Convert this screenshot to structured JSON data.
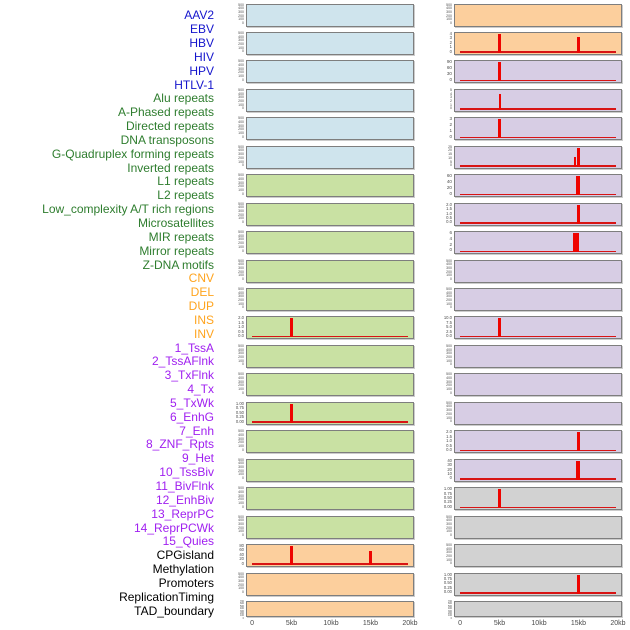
{
  "colors": {
    "label": {
      "virus": "#1414cc",
      "repeat": "#2e7d2e",
      "structural_variant": "#ffa41e",
      "chromatin_state": "#a020f0",
      "other": "#000000"
    },
    "fill": {
      "blue": "#cfe4ed",
      "green": "#c9e1a3",
      "orange": "#fccf9d",
      "purple": "#d7cde4",
      "gray": "#d2d2d2"
    },
    "spike_red": "#ee0400"
  },
  "chart_data": {
    "type": "area",
    "title": "",
    "xlabel": "",
    "ylabel": "",
    "x_range_kb": [
      0,
      20
    ],
    "x_ticks": [
      "0",
      "5kb",
      "10kb",
      "15kb",
      "20kb"
    ],
    "columns": 2,
    "legend_position": "none",
    "grid": false,
    "row_labels": [
      {
        "text": "AAV2",
        "group": "virus"
      },
      {
        "text": "EBV",
        "group": "virus"
      },
      {
        "text": "HBV",
        "group": "virus"
      },
      {
        "text": "HIV",
        "group": "virus"
      },
      {
        "text": "HPV",
        "group": "virus"
      },
      {
        "text": "HTLV-1",
        "group": "virus"
      },
      {
        "text": "Alu repeats",
        "group": "repeat"
      },
      {
        "text": "A-Phased repeats",
        "group": "repeat"
      },
      {
        "text": "Directed repeats",
        "group": "repeat"
      },
      {
        "text": "DNA transposons",
        "group": "repeat"
      },
      {
        "text": "G-Quadruplex forming repeats",
        "group": "repeat"
      },
      {
        "text": "Inverted repeats",
        "group": "repeat"
      },
      {
        "text": "L1 repeats",
        "group": "repeat"
      },
      {
        "text": "L2 repeats",
        "group": "repeat"
      },
      {
        "text": "Low_complexity A/T rich regions",
        "group": "repeat"
      },
      {
        "text": "Microsatellites",
        "group": "repeat"
      },
      {
        "text": "MIR repeats",
        "group": "repeat"
      },
      {
        "text": "Mirror repeats",
        "group": "repeat"
      },
      {
        "text": "Z-DNA motifs",
        "group": "repeat"
      },
      {
        "text": "CNV",
        "group": "structural_variant"
      },
      {
        "text": "DEL",
        "group": "structural_variant"
      },
      {
        "text": "DUP",
        "group": "structural_variant"
      },
      {
        "text": "INS",
        "group": "structural_variant"
      },
      {
        "text": "INV",
        "group": "structural_variant"
      },
      {
        "text": "1_TssA",
        "group": "chromatin_state"
      },
      {
        "text": "2_TssAFlnk",
        "group": "chromatin_state"
      },
      {
        "text": "3_TxFlnk",
        "group": "chromatin_state"
      },
      {
        "text": "4_Tx",
        "group": "chromatin_state"
      },
      {
        "text": "5_TxWk",
        "group": "chromatin_state"
      },
      {
        "text": "6_EnhG",
        "group": "chromatin_state"
      },
      {
        "text": "7_Enh",
        "group": "chromatin_state"
      },
      {
        "text": "8_ZNF_Rpts",
        "group": "chromatin_state"
      },
      {
        "text": "9_Het",
        "group": "chromatin_state"
      },
      {
        "text": "10_TssBiv",
        "group": "chromatin_state"
      },
      {
        "text": "11_BivFlnk",
        "group": "chromatin_state"
      },
      {
        "text": "12_EnhBiv",
        "group": "chromatin_state"
      },
      {
        "text": "13_ReprPC",
        "group": "chromatin_state"
      },
      {
        "text": "14_ReprPCWk",
        "group": "chromatin_state"
      },
      {
        "text": "15_Quies",
        "group": "chromatin_state"
      },
      {
        "text": "CPGisland",
        "group": "other"
      },
      {
        "text": "Methylation",
        "group": "other"
      },
      {
        "text": "Promoters",
        "group": "other"
      },
      {
        "text": "ReplicationTiming",
        "group": "other"
      },
      {
        "text": "TAD_boundary",
        "group": "other"
      }
    ],
    "bands": [
      {
        "left": {
          "fill": "blue",
          "ticks": [
            "500",
            "400",
            "300",
            "200",
            "100",
            "0"
          ],
          "spikes": [],
          "baseline": false
        },
        "right": {
          "fill": "orange",
          "ticks": [
            "500",
            "400",
            "300",
            "200",
            "100",
            "0"
          ],
          "spikes": [],
          "baseline": false
        }
      },
      {
        "left": {
          "fill": "blue",
          "ticks": [
            "500",
            "400",
            "300",
            "200",
            "100",
            "0"
          ],
          "spikes": [],
          "baseline": false
        },
        "right": {
          "fill": "orange",
          "ticks": [
            "4",
            "3",
            "2",
            "1",
            "0"
          ],
          "spikes": [
            {
              "kb": 5,
              "h": 1,
              "w": 3
            },
            {
              "kb": 15,
              "h": 0.85,
              "w": 3
            }
          ],
          "baseline": true
        }
      },
      {
        "left": {
          "fill": "blue",
          "ticks": [
            "500",
            "400",
            "300",
            "200",
            "100",
            "0"
          ],
          "spikes": [],
          "baseline": false
        },
        "right": {
          "fill": "purple",
          "ticks": [
            "90",
            "60",
            "30",
            "0"
          ],
          "spikes": [
            {
              "kb": 5,
              "h": 1,
              "w": 3
            }
          ],
          "baseline": true
        }
      },
      {
        "left": {
          "fill": "blue",
          "ticks": [
            "500",
            "400",
            "300",
            "200",
            "100",
            "0"
          ],
          "spikes": [],
          "baseline": false
        },
        "right": {
          "fill": "purple",
          "ticks": [
            "5",
            "4",
            "3",
            "2",
            "1",
            "0"
          ],
          "spikes": [
            {
              "kb": 5,
              "h": 0.85,
              "w": 2
            }
          ],
          "baseline": true
        }
      },
      {
        "left": {
          "fill": "blue",
          "ticks": [
            "500",
            "400",
            "300",
            "200",
            "100",
            "0"
          ],
          "spikes": [],
          "baseline": false
        },
        "right": {
          "fill": "purple",
          "ticks": [
            "3",
            "2",
            "1",
            "0"
          ],
          "spikes": [
            {
              "kb": 5,
              "h": 1,
              "w": 3
            }
          ],
          "baseline": true
        }
      },
      {
        "left": {
          "fill": "blue",
          "ticks": [
            "500",
            "400",
            "300",
            "200",
            "100",
            "0"
          ],
          "spikes": [],
          "baseline": false
        },
        "right": {
          "fill": "purple",
          "ticks": [
            "25",
            "20",
            "15",
            "10",
            "5",
            "0"
          ],
          "spikes": [
            {
              "kb": 14.6,
              "h": 0.5,
              "w": 2
            },
            {
              "kb": 15,
              "h": 1,
              "w": 3
            }
          ],
          "baseline": true
        }
      },
      {
        "left": {
          "fill": "green",
          "ticks": [
            "500",
            "400",
            "300",
            "200",
            "100",
            "0"
          ],
          "spikes": [],
          "baseline": false
        },
        "right": {
          "fill": "purple",
          "ticks": [
            "60",
            "40",
            "20",
            "0"
          ],
          "spikes": [
            {
              "kb": 15,
              "h": 1,
              "w": 4
            }
          ],
          "baseline": true
        }
      },
      {
        "left": {
          "fill": "green",
          "ticks": [
            "500",
            "400",
            "300",
            "200",
            "100",
            "0"
          ],
          "spikes": [],
          "baseline": false
        },
        "right": {
          "fill": "purple",
          "ticks": [
            "2.0",
            "1.5",
            "1.0",
            "0.5",
            "0.0"
          ],
          "spikes": [
            {
              "kb": 15,
              "h": 1,
              "w": 3
            }
          ],
          "baseline": true
        }
      },
      {
        "left": {
          "fill": "green",
          "ticks": [
            "500",
            "400",
            "300",
            "200",
            "100",
            "0"
          ],
          "spikes": [],
          "baseline": false
        },
        "right": {
          "fill": "purple",
          "ticks": [
            "6",
            "4",
            "2",
            "0"
          ],
          "spikes": [
            {
              "kb": 14.8,
              "h": 1,
              "w": 6
            }
          ],
          "baseline": true
        }
      },
      {
        "left": {
          "fill": "green",
          "ticks": [
            "500",
            "400",
            "300",
            "200",
            "100",
            "0"
          ],
          "spikes": [],
          "baseline": false
        },
        "right": {
          "fill": "purple",
          "ticks": [
            "500",
            "400",
            "300",
            "200",
            "100",
            "0"
          ],
          "spikes": [],
          "baseline": false
        }
      },
      {
        "left": {
          "fill": "green",
          "ticks": [
            "500",
            "400",
            "300",
            "200",
            "100",
            "0"
          ],
          "spikes": [],
          "baseline": false
        },
        "right": {
          "fill": "purple",
          "ticks": [
            "500",
            "400",
            "300",
            "200",
            "100",
            "0"
          ],
          "spikes": [],
          "baseline": false
        }
      },
      {
        "left": {
          "fill": "green",
          "ticks": [
            "2.0",
            "1.5",
            "1.0",
            "0.5",
            "0.0"
          ],
          "spikes": [
            {
              "kb": 5,
              "h": 1,
              "w": 3
            }
          ],
          "baseline": true
        },
        "right": {
          "fill": "purple",
          "ticks": [
            "10.0",
            "7.5",
            "5.0",
            "2.5",
            "0.0"
          ],
          "spikes": [
            {
              "kb": 5,
              "h": 1,
              "w": 3
            }
          ],
          "baseline": true
        }
      },
      {
        "left": {
          "fill": "green",
          "ticks": [
            "500",
            "400",
            "300",
            "200",
            "100",
            "0"
          ],
          "spikes": [],
          "baseline": false
        },
        "right": {
          "fill": "purple",
          "ticks": [
            "500",
            "400",
            "300",
            "200",
            "100",
            "0"
          ],
          "spikes": [],
          "baseline": false
        }
      },
      {
        "left": {
          "fill": "green",
          "ticks": [
            "500",
            "400",
            "300",
            "200",
            "100",
            "0"
          ],
          "spikes": [],
          "baseline": false
        },
        "right": {
          "fill": "purple",
          "ticks": [
            "500",
            "400",
            "300",
            "200",
            "100",
            "0"
          ],
          "spikes": [],
          "baseline": false
        }
      },
      {
        "left": {
          "fill": "green",
          "ticks": [
            "1.00",
            "0.75",
            "0.50",
            "0.25",
            "0.00"
          ],
          "spikes": [
            {
              "kb": 5,
              "h": 1,
              "w": 3
            }
          ],
          "baseline": true
        },
        "right": {
          "fill": "purple",
          "ticks": [
            "500",
            "400",
            "300",
            "200",
            "100",
            "0"
          ],
          "spikes": [],
          "baseline": false
        }
      },
      {
        "left": {
          "fill": "green",
          "ticks": [
            "500",
            "400",
            "300",
            "200",
            "100",
            "0"
          ],
          "spikes": [],
          "baseline": false
        },
        "right": {
          "fill": "purple",
          "ticks": [
            "2.0",
            "1.5",
            "1.0",
            "0.5",
            "0.0"
          ],
          "spikes": [
            {
              "kb": 15,
              "h": 1,
              "w": 3
            }
          ],
          "baseline": true
        }
      },
      {
        "left": {
          "fill": "green",
          "ticks": [
            "500",
            "400",
            "300",
            "200",
            "100",
            "0"
          ],
          "spikes": [],
          "baseline": false
        },
        "right": {
          "fill": "purple",
          "ticks": [
            "40",
            "30",
            "20",
            "10",
            "0"
          ],
          "spikes": [
            {
              "kb": 15,
              "h": 1,
              "w": 4
            }
          ],
          "baseline": true
        }
      },
      {
        "left": {
          "fill": "green",
          "ticks": [
            "500",
            "400",
            "300",
            "200",
            "100",
            "0"
          ],
          "spikes": [],
          "baseline": false
        },
        "right": {
          "fill": "gray",
          "ticks": [
            "1.00",
            "0.75",
            "0.50",
            "0.25",
            "0.00"
          ],
          "spikes": [
            {
              "kb": 5,
              "h": 1,
              "w": 3
            }
          ],
          "baseline": true
        }
      },
      {
        "left": {
          "fill": "green",
          "ticks": [
            "500",
            "400",
            "300",
            "200",
            "100",
            "0"
          ],
          "spikes": [],
          "baseline": false
        },
        "right": {
          "fill": "gray",
          "ticks": [
            "500",
            "400",
            "300",
            "200",
            "100",
            "0"
          ],
          "spikes": [],
          "baseline": false
        }
      },
      {
        "left": {
          "fill": "orange",
          "ticks": [
            "80",
            "60",
            "40",
            "20",
            "0"
          ],
          "spikes": [
            {
              "kb": 5,
              "h": 1,
              "w": 3
            },
            {
              "kb": 15,
              "h": 0.72,
              "w": 3
            }
          ],
          "baseline": true
        },
        "right": {
          "fill": "gray",
          "ticks": [
            "500",
            "400",
            "300",
            "200",
            "100",
            "0"
          ],
          "spikes": [],
          "baseline": false
        }
      },
      {
        "left": {
          "fill": "orange",
          "ticks": [
            "500",
            "400",
            "300",
            "200",
            "100",
            "0"
          ],
          "spikes": [],
          "baseline": false
        },
        "right": {
          "fill": "gray",
          "ticks": [
            "1.00",
            "0.75",
            "0.50",
            "0.25",
            "0.00"
          ],
          "spikes": [
            {
              "kb": 15,
              "h": 0.97,
              "w": 3
            }
          ],
          "baseline": true
        }
      },
      {
        "left": {
          "fill": "orange",
          "ticks": [
            "700",
            "600",
            "500",
            "400",
            "300",
            "200",
            "100",
            "0"
          ],
          "spikes": [],
          "baseline": false
        },
        "right": {
          "fill": "gray",
          "ticks": [
            "700",
            "600",
            "500",
            "400",
            "300",
            "200",
            "100",
            "0"
          ],
          "spikes": [],
          "baseline": false
        }
      }
    ]
  }
}
